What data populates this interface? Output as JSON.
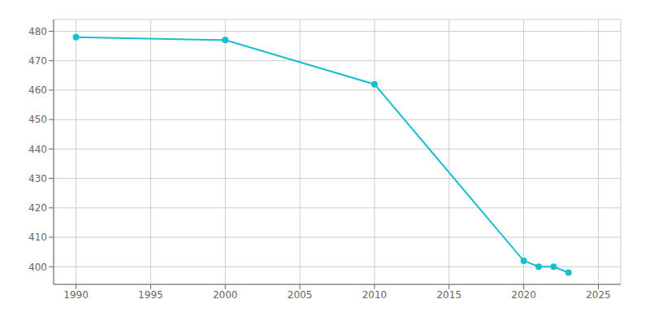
{
  "chart_data": {
    "type": "line",
    "x": [
      1990,
      2000,
      2010,
      2020,
      2021,
      2022,
      2023
    ],
    "values": [
      478,
      477,
      462,
      402,
      400,
      400,
      398
    ],
    "color": "#17becf",
    "marker": "o",
    "xlim": [
      1988.5,
      2026.5
    ],
    "ylim": [
      394,
      484
    ],
    "xticks": [
      1990,
      1995,
      2000,
      2005,
      2010,
      2015,
      2020,
      2025
    ],
    "yticks": [
      400,
      410,
      420,
      430,
      440,
      450,
      460,
      470,
      480
    ],
    "grid": true
  }
}
